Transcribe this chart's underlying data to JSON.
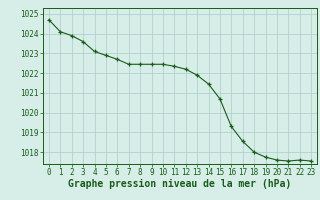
{
  "x": [
    0,
    1,
    2,
    3,
    4,
    5,
    6,
    7,
    8,
    9,
    10,
    11,
    12,
    13,
    14,
    15,
    16,
    17,
    18,
    19,
    20,
    21,
    22,
    23
  ],
  "y": [
    1024.7,
    1024.1,
    1023.9,
    1023.6,
    1023.1,
    1022.9,
    1022.7,
    1022.45,
    1022.45,
    1022.45,
    1022.45,
    1022.35,
    1022.2,
    1021.9,
    1021.45,
    1020.7,
    1019.3,
    1018.55,
    1018.0,
    1017.75,
    1017.6,
    1017.55,
    1017.6,
    1017.55
  ],
  "line_color": "#1a5c1a",
  "marker_color": "#1a5c1a",
  "bg_color": "#d6ede8",
  "grid_color": "#aaccc6",
  "xlabel": "Graphe pression niveau de la mer (hPa)",
  "xlim_min": -0.5,
  "xlim_max": 23.5,
  "ylim_min": 1017.4,
  "ylim_max": 1025.3,
  "yticks": [
    1018,
    1019,
    1020,
    1021,
    1022,
    1023,
    1024,
    1025
  ],
  "xticks": [
    0,
    1,
    2,
    3,
    4,
    5,
    6,
    7,
    8,
    9,
    10,
    11,
    12,
    13,
    14,
    15,
    16,
    17,
    18,
    19,
    20,
    21,
    22,
    23
  ],
  "tick_fontsize": 5.5,
  "xlabel_fontsize": 7,
  "label_color": "#1a5c1a"
}
